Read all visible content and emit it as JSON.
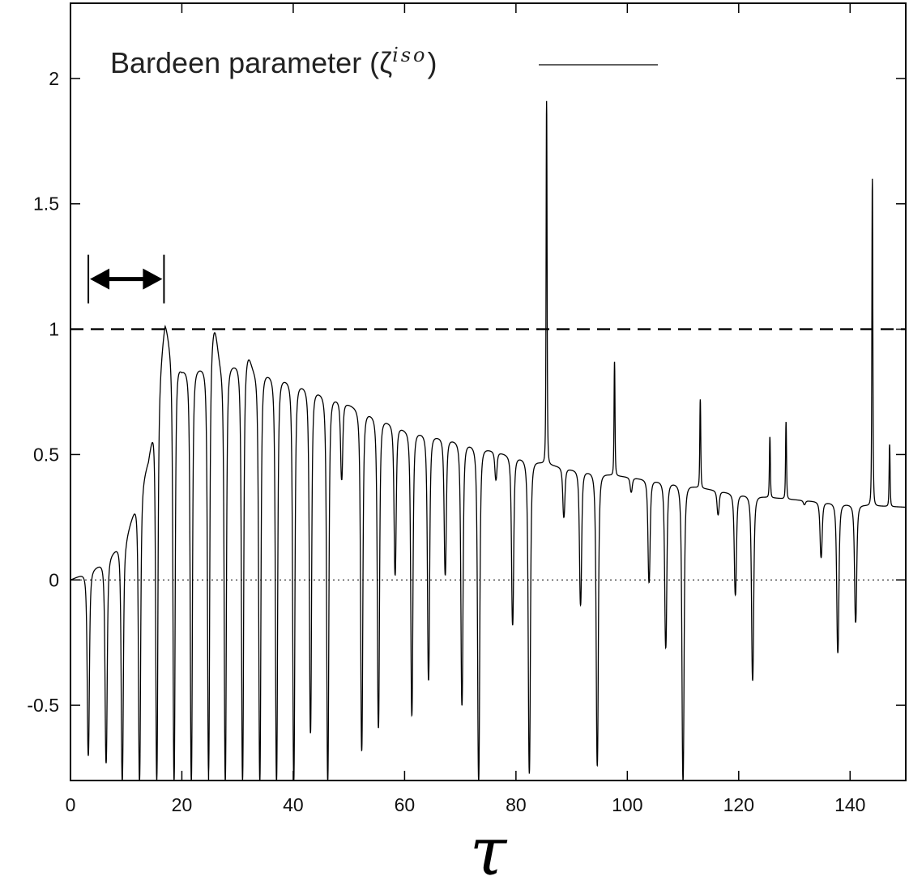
{
  "chart_data": {
    "type": "line",
    "xlabel": "τ",
    "ylabel": "",
    "xlim": [
      0,
      150
    ],
    "ylim": [
      -0.8,
      2.3
    ],
    "x_ticks": [
      0,
      20,
      40,
      60,
      80,
      100,
      120,
      140
    ],
    "x_tick_labels": [
      "0",
      "20",
      "40",
      "60",
      "80",
      "100",
      "120",
      "140"
    ],
    "y_ticks": [
      -0.5,
      0,
      0.5,
      1,
      1.5,
      2
    ],
    "y_tick_labels": [
      "-0.5",
      "0",
      "0.5",
      "1",
      "1.5",
      "2"
    ],
    "legend": {
      "position": "top-left",
      "label_main": "Bardeen parameter (",
      "label_symbol": "ζ",
      "label_superscript": "iso",
      "label_close": ")"
    },
    "reference_lines": [
      {
        "y": 1,
        "style": "dashed"
      },
      {
        "y": 0,
        "style": "dotted"
      }
    ],
    "annotation": {
      "type": "double-arrow",
      "x_start": 3.5,
      "x_end": 16.5,
      "y": 1.2
    },
    "series": [
      {
        "name": "Bardeen parameter (ζ^iso)",
        "style": "solid",
        "base_levels": [
          [
            0,
            0
          ],
          [
            3,
            0.03
          ],
          [
            6,
            0.07
          ],
          [
            10,
            0.17
          ],
          [
            14,
            0.48
          ],
          [
            17,
            0.95
          ],
          [
            20,
            0.84
          ],
          [
            30,
            0.86
          ],
          [
            40,
            0.79
          ],
          [
            50,
            0.7
          ],
          [
            60,
            0.6
          ],
          [
            70,
            0.55
          ],
          [
            80,
            0.49
          ],
          [
            90,
            0.44
          ],
          [
            100,
            0.41
          ],
          [
            110,
            0.38
          ],
          [
            120,
            0.34
          ],
          [
            130,
            0.32
          ],
          [
            140,
            0.3
          ],
          [
            150,
            0.29
          ]
        ],
        "dips": [
          {
            "x": 3.2,
            "y": -0.7
          },
          {
            "x": 6.4,
            "y": -0.73
          },
          {
            "x": 9.3,
            "y": -0.8
          },
          {
            "x": 12.4,
            "y": -0.8
          },
          {
            "x": 15.5,
            "y": -0.8
          },
          {
            "x": 18.6,
            "y": -0.8
          },
          {
            "x": 21.7,
            "y": -0.8
          },
          {
            "x": 24.8,
            "y": -0.8
          },
          {
            "x": 27.8,
            "y": -0.8
          },
          {
            "x": 30.9,
            "y": -0.8
          },
          {
            "x": 34.0,
            "y": -0.8
          },
          {
            "x": 37.0,
            "y": -0.8
          },
          {
            "x": 40.1,
            "y": -0.8
          },
          {
            "x": 43.1,
            "y": -0.61
          },
          {
            "x": 46.2,
            "y": -0.8
          },
          {
            "x": 48.7,
            "y": 0.4
          },
          {
            "x": 52.3,
            "y": -0.68
          },
          {
            "x": 55.3,
            "y": -0.59
          },
          {
            "x": 58.3,
            "y": 0.02
          },
          {
            "x": 61.3,
            "y": -0.54
          },
          {
            "x": 64.3,
            "y": -0.4
          },
          {
            "x": 67.3,
            "y": 0.02
          },
          {
            "x": 70.3,
            "y": -0.5
          },
          {
            "x": 73.3,
            "y": -0.8
          },
          {
            "x": 76.4,
            "y": 0.4
          },
          {
            "x": 79.4,
            "y": -0.18
          },
          {
            "x": 82.4,
            "y": -0.77
          },
          {
            "x": 88.6,
            "y": 0.25
          },
          {
            "x": 91.6,
            "y": -0.1
          },
          {
            "x": 94.6,
            "y": -0.74
          },
          {
            "x": 100.7,
            "y": 0.35
          },
          {
            "x": 103.9,
            "y": -0.01
          },
          {
            "x": 106.9,
            "y": -0.27
          },
          {
            "x": 110.0,
            "y": -0.8
          },
          {
            "x": 116.3,
            "y": 0.26
          },
          {
            "x": 119.4,
            "y": -0.06
          },
          {
            "x": 122.5,
            "y": -0.4
          },
          {
            "x": 131.8,
            "y": 0.3
          },
          {
            "x": 134.8,
            "y": 0.09
          },
          {
            "x": 137.8,
            "y": -0.29
          },
          {
            "x": 141.0,
            "y": -0.17
          }
        ],
        "bumps": [
          {
            "x": 16.9,
            "y": 1.01,
            "w": 0.9
          },
          {
            "x": 25.8,
            "y": 1.01,
            "w": 0.8
          },
          {
            "x": 31.9,
            "y": 0.9,
            "w": 0.7
          }
        ],
        "spikes": [
          {
            "x": 85.5,
            "y": 1.91
          },
          {
            "x": 97.7,
            "y": 0.87
          },
          {
            "x": 113.1,
            "y": 0.72
          },
          {
            "x": 125.6,
            "y": 0.57
          },
          {
            "x": 128.5,
            "y": 0.63
          },
          {
            "x": 144.0,
            "y": 1.6
          },
          {
            "x": 147.1,
            "y": 0.54
          }
        ]
      }
    ]
  }
}
